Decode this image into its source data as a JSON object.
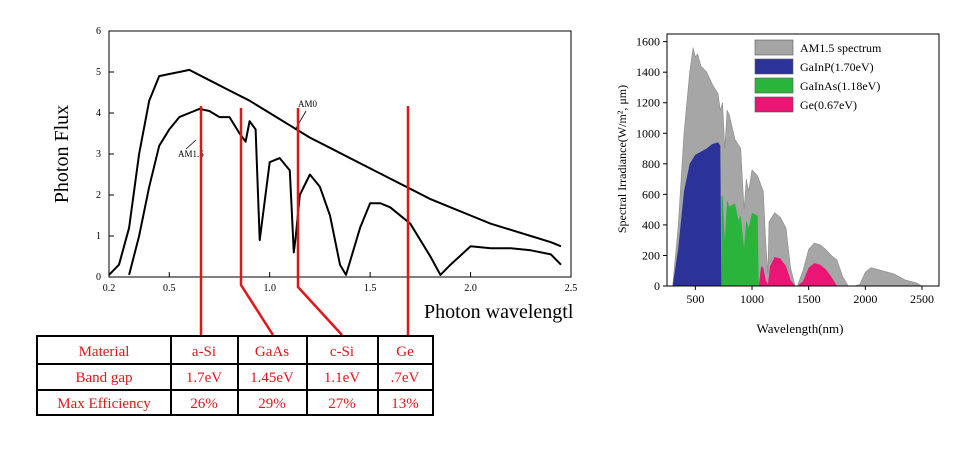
{
  "chart_data": [
    {
      "type": "line",
      "ylabel": "Photon Flux",
      "xlabel": "Photon wavelengtl",
      "xlim": [
        0.2,
        2.5
      ],
      "ylim": [
        0,
        6
      ],
      "x_ticks": [
        "0.2",
        "0.5",
        "1.0",
        "1.5",
        "2.0",
        "2.5"
      ],
      "x_tick_values": [
        0.2,
        0.5,
        1.0,
        1.5,
        2.0,
        2.5
      ],
      "y_ticks": [
        "0",
        "1",
        "2",
        "3",
        "4",
        "5",
        "6"
      ],
      "annotations": [
        "AM0",
        "AM1.5"
      ],
      "series": [
        {
          "name": "AM0",
          "x": [
            0.2,
            0.25,
            0.3,
            0.35,
            0.4,
            0.45,
            0.5,
            0.55,
            0.6,
            0.7,
            0.8,
            0.9,
            1.0,
            1.1,
            1.2,
            1.3,
            1.4,
            1.5,
            1.6,
            1.7,
            1.8,
            1.9,
            2.0,
            2.1,
            2.2,
            2.3,
            2.4,
            2.45
          ],
          "values": [
            0.05,
            0.3,
            1.2,
            3.0,
            4.3,
            4.9,
            4.95,
            5.0,
            5.05,
            4.8,
            4.55,
            4.3,
            4.0,
            3.7,
            3.4,
            3.15,
            2.9,
            2.65,
            2.4,
            2.15,
            1.9,
            1.7,
            1.5,
            1.3,
            1.15,
            1.0,
            0.85,
            0.75
          ]
        },
        {
          "name": "AM1.5",
          "x": [
            0.3,
            0.35,
            0.4,
            0.45,
            0.5,
            0.55,
            0.6,
            0.65,
            0.7,
            0.75,
            0.8,
            0.85,
            0.88,
            0.9,
            0.93,
            0.95,
            1.0,
            1.05,
            1.1,
            1.12,
            1.13,
            1.15,
            1.2,
            1.25,
            1.3,
            1.35,
            1.38,
            1.45,
            1.5,
            1.55,
            1.6,
            1.7,
            1.8,
            1.85,
            1.9,
            2.0,
            2.1,
            2.2,
            2.3,
            2.4,
            2.45
          ],
          "values": [
            0.05,
            1.0,
            2.2,
            3.2,
            3.6,
            3.9,
            4.0,
            4.1,
            4.05,
            3.9,
            3.9,
            3.5,
            3.3,
            3.8,
            3.6,
            0.9,
            2.8,
            2.9,
            2.6,
            0.6,
            1.0,
            2.0,
            2.5,
            2.2,
            1.5,
            0.3,
            0.05,
            1.2,
            1.8,
            1.8,
            1.7,
            1.3,
            0.5,
            0.05,
            0.3,
            0.75,
            0.7,
            0.7,
            0.65,
            0.55,
            0.3
          ]
        }
      ],
      "markers": [
        {
          "material": "a-Si",
          "x": 0.73
        },
        {
          "material": "GaAs",
          "x": 0.87
        },
        {
          "material": "c-Si",
          "x": 1.12
        },
        {
          "material": "Ge",
          "x": 1.65
        }
      ]
    },
    {
      "type": "area",
      "ylabel": "Spectral Irradiance(W/m², μm)",
      "xlabel": "Wavelength(nm)",
      "xlim": [
        250,
        2650
      ],
      "ylim": [
        0,
        1650
      ],
      "x_ticks": [
        "500",
        "1000",
        "1500",
        "2000",
        "2500"
      ],
      "x_tick_values": [
        500,
        1000,
        1500,
        2000,
        2500
      ],
      "y_ticks": [
        "0",
        "200",
        "400",
        "600",
        "800",
        "1000",
        "1200",
        "1400",
        "1600"
      ],
      "y_tick_values": [
        0,
        200,
        400,
        600,
        800,
        1000,
        1200,
        1400,
        1600
      ],
      "legend_position": "top-right",
      "series": [
        {
          "name": "AM1.5 spectrum",
          "color": "#a6a6a6",
          "x": [
            300,
            350,
            400,
            450,
            480,
            500,
            520,
            550,
            600,
            650,
            700,
            720,
            740,
            760,
            780,
            800,
            850,
            900,
            930,
            950,
            970,
            1000,
            1050,
            1100,
            1120,
            1140,
            1150,
            1200,
            1250,
            1300,
            1340,
            1380,
            1400,
            1450,
            1500,
            1550,
            1600,
            1650,
            1700,
            1750,
            1800,
            1850,
            1900,
            1950,
            2000,
            2050,
            2100,
            2150,
            2200,
            2250,
            2300,
            2350,
            2400,
            2450,
            2500
          ],
          "values": [
            0,
            400,
            1000,
            1400,
            1560,
            1500,
            1520,
            1440,
            1400,
            1320,
            1260,
            1150,
            1200,
            900,
            1150,
            1120,
            960,
            900,
            500,
            700,
            620,
            760,
            720,
            620,
            300,
            80,
            420,
            480,
            450,
            380,
            120,
            0,
            0,
            100,
            240,
            280,
            270,
            240,
            200,
            170,
            60,
            0,
            0,
            10,
            90,
            120,
            110,
            100,
            90,
            80,
            60,
            40,
            30,
            20,
            0
          ]
        },
        {
          "name": "GaInP(1.70eV)",
          "color": "#2b3399",
          "x": [
            300,
            350,
            400,
            450,
            500,
            550,
            600,
            650,
            700,
            720,
            730
          ],
          "values": [
            0,
            250,
            620,
            800,
            860,
            880,
            900,
            930,
            940,
            920,
            0
          ]
        },
        {
          "name": "GaInAs(1.18eV)",
          "color": "#2bb43c",
          "x": [
            730,
            740,
            760,
            780,
            800,
            850,
            880,
            900,
            930,
            950,
            970,
            1000,
            1050,
            1060
          ],
          "values": [
            580,
            600,
            300,
            560,
            520,
            540,
            430,
            460,
            250,
            430,
            380,
            480,
            460,
            0
          ]
        },
        {
          "name": "Ge(0.67eV)",
          "color": "#ea1574",
          "x": [
            1060,
            1080,
            1100,
            1120,
            1140,
            1160,
            1200,
            1250,
            1300,
            1340,
            1380,
            1400,
            1450,
            1500,
            1550,
            1600,
            1650,
            1700,
            1750
          ],
          "values": [
            0,
            130,
            120,
            40,
            10,
            130,
            190,
            180,
            130,
            40,
            0,
            0,
            30,
            120,
            150,
            140,
            110,
            60,
            0
          ]
        }
      ]
    }
  ],
  "table": {
    "headers": [
      "Material",
      "a-Si",
      "GaAs",
      "c-Si",
      "Ge"
    ],
    "rows": [
      [
        "Band gap",
        "1.7eV",
        "1.45eV",
        "1.1eV",
        ".7eV"
      ],
      [
        "Max Efficiency",
        "26%",
        "29%",
        "27%",
        "13%"
      ]
    ]
  }
}
